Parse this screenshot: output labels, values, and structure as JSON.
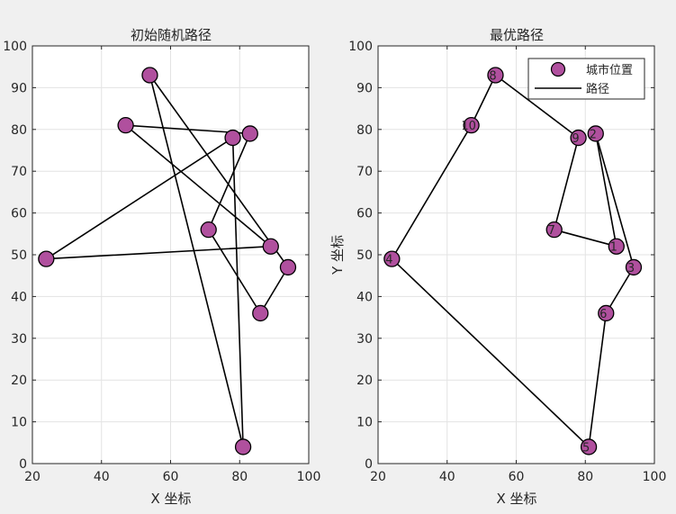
{
  "chart_data": [
    {
      "type": "line",
      "title": "初始随机路径",
      "xlabel": "X 坐标",
      "ylabel": "",
      "xlim": [
        20,
        100
      ],
      "ylim": [
        0,
        100
      ],
      "xticks": [
        20,
        40,
        60,
        80,
        100
      ],
      "yticks": [
        0,
        10,
        20,
        30,
        40,
        50,
        60,
        70,
        80,
        90,
        100
      ],
      "grid": true,
      "city_color": "#b0509e",
      "path_color": "#000000",
      "cities": [
        {
          "x": 54,
          "y": 93
        },
        {
          "x": 81,
          "y": 4
        },
        {
          "x": 78,
          "y": 78
        },
        {
          "x": 86,
          "y": 36
        },
        {
          "x": 71,
          "y": 56
        },
        {
          "x": 83,
          "y": 79
        },
        {
          "x": 24,
          "y": 49
        },
        {
          "x": 89,
          "y": 52
        },
        {
          "x": 47,
          "y": 81
        },
        {
          "x": 94,
          "y": 47
        }
      ],
      "path": [
        {
          "x": 54,
          "y": 93
        },
        {
          "x": 81,
          "y": 4
        },
        {
          "x": 78,
          "y": 78
        },
        {
          "x": 24,
          "y": 49
        },
        {
          "x": 89,
          "y": 52
        },
        {
          "x": 47,
          "y": 81
        },
        {
          "x": 83,
          "y": 79
        },
        {
          "x": 71,
          "y": 56
        },
        {
          "x": 86,
          "y": 36
        },
        {
          "x": 94,
          "y": 47
        },
        {
          "x": 54,
          "y": 93
        }
      ]
    },
    {
      "type": "line",
      "title": "最优路径",
      "xlabel": "X 坐标",
      "ylabel": "Y 坐标",
      "xlim": [
        20,
        100
      ],
      "ylim": [
        0,
        100
      ],
      "xticks": [
        20,
        40,
        60,
        80,
        100
      ],
      "yticks": [
        0,
        10,
        20,
        30,
        40,
        50,
        60,
        70,
        80,
        90,
        100
      ],
      "grid": true,
      "legend_position": "top-right",
      "legend": [
        {
          "label": "城市位置",
          "kind": "marker"
        },
        {
          "label": "路径",
          "kind": "line"
        }
      ],
      "city_color": "#b0509e",
      "path_color": "#000000",
      "cities": [
        {
          "x": 89,
          "y": 52,
          "label": "1"
        },
        {
          "x": 83,
          "y": 79,
          "label": "2"
        },
        {
          "x": 94,
          "y": 47,
          "label": "3"
        },
        {
          "x": 24,
          "y": 49,
          "label": "4"
        },
        {
          "x": 81,
          "y": 4,
          "label": "5"
        },
        {
          "x": 86,
          "y": 36,
          "label": "6"
        },
        {
          "x": 71,
          "y": 56,
          "label": "7"
        },
        {
          "x": 54,
          "y": 93,
          "label": "8"
        },
        {
          "x": 78,
          "y": 78,
          "label": "9"
        },
        {
          "x": 47,
          "y": 81,
          "label": "10"
        }
      ],
      "path": [
        {
          "x": 54,
          "y": 93
        },
        {
          "x": 78,
          "y": 78
        },
        {
          "x": 71,
          "y": 56
        },
        {
          "x": 89,
          "y": 52
        },
        {
          "x": 83,
          "y": 79
        },
        {
          "x": 94,
          "y": 47
        },
        {
          "x": 86,
          "y": 36
        },
        {
          "x": 81,
          "y": 4
        },
        {
          "x": 24,
          "y": 49
        },
        {
          "x": 47,
          "y": 81
        },
        {
          "x": 54,
          "y": 93
        }
      ]
    }
  ]
}
